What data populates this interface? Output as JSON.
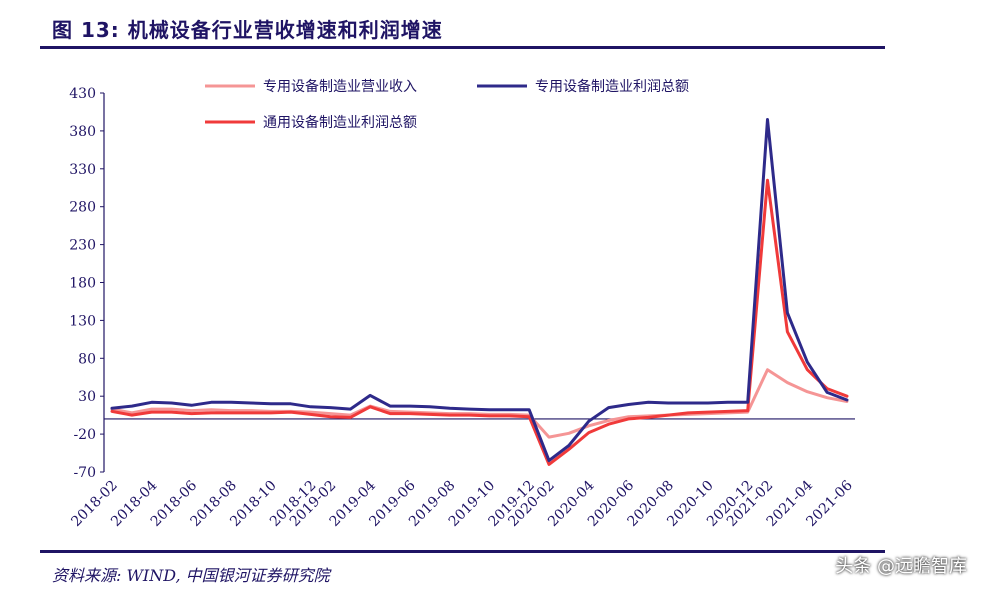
{
  "title": "图 13: 机械设备行业营收增速和利润增速",
  "source": "资料来源: WIND, 中国银河证券研究院",
  "watermark": "头条 @远瞻智库",
  "chart_data": {
    "type": "line",
    "title": "图 13: 机械设备行业营收增速和利润增速",
    "xlabel": "",
    "ylabel": "",
    "ylim": [
      -70,
      430
    ],
    "yticks": [
      430,
      380,
      330,
      280,
      230,
      180,
      130,
      80,
      30,
      -20,
      -70
    ],
    "grid": false,
    "legend_placement": "top-center",
    "x": [
      "2018-02",
      "2018-03",
      "2018-04",
      "2018-05",
      "2018-06",
      "2018-07",
      "2018-08",
      "2018-09",
      "2018-10",
      "2018-11",
      "2018-12",
      "2019-02",
      "2019-03",
      "2019-04",
      "2019-05",
      "2019-06",
      "2019-07",
      "2019-08",
      "2019-09",
      "2019-10",
      "2019-11",
      "2019-12",
      "2020-02",
      "2020-03",
      "2020-04",
      "2020-05",
      "2020-06",
      "2020-07",
      "2020-08",
      "2020-09",
      "2020-10",
      "2020-11",
      "2020-12",
      "2021-02",
      "2021-03",
      "2021-04",
      "2021-05",
      "2021-06"
    ],
    "xtick_labels": [
      "2018-02",
      "2018-04",
      "2018-06",
      "2018-08",
      "2018-10",
      "2018-12",
      "2019-02",
      "2019-04",
      "2019-06",
      "2019-08",
      "2019-10",
      "2019-12",
      "2020-02",
      "2020-04",
      "2020-06",
      "2020-08",
      "2020-10",
      "2020-12",
      "2021-02",
      "2021-04",
      "2021-06"
    ],
    "series": [
      {
        "name": "专用设备制造业营业收入",
        "color": "#f59595",
        "values": [
          13,
          8,
          13,
          13,
          11,
          12,
          11,
          11,
          10,
          10,
          9,
          7,
          5,
          17,
          10,
          9,
          8,
          7,
          7,
          6,
          6,
          5,
          -24,
          -19,
          -9,
          -2,
          3,
          4,
          5,
          6,
          7,
          8,
          9,
          65,
          48,
          36,
          28,
          23
        ]
      },
      {
        "name": "专用设备制造业利润总额",
        "color": "#2e2a8a",
        "values": [
          14,
          17,
          22,
          21,
          18,
          22,
          22,
          21,
          20,
          20,
          16,
          15,
          13,
          31,
          17,
          17,
          16,
          14,
          13,
          12,
          12,
          12,
          -55,
          -35,
          -3,
          15,
          19,
          22,
          21,
          21,
          21,
          22,
          22,
          395,
          140,
          75,
          35,
          25
        ]
      },
      {
        "name": "通用设备制造业利润总额",
        "color": "#f03a3a",
        "values": [
          10,
          5,
          9,
          9,
          7,
          8,
          8,
          8,
          8,
          9,
          6,
          3,
          2,
          16,
          7,
          7,
          6,
          5,
          5,
          4,
          4,
          3,
          -60,
          -40,
          -18,
          -7,
          0,
          2,
          5,
          8,
          9,
          10,
          11,
          315,
          115,
          65,
          40,
          30
        ]
      }
    ]
  }
}
